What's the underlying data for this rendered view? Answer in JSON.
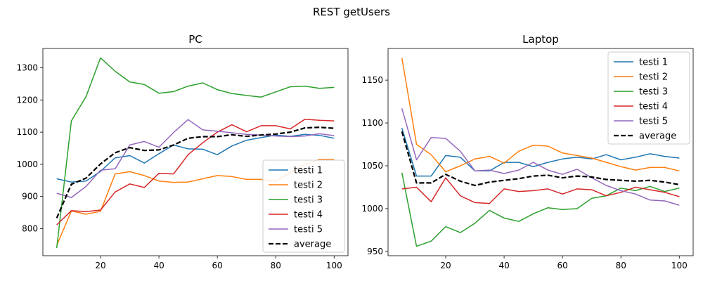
{
  "suptitle": "REST getUsers",
  "chart_data": [
    {
      "type": "line",
      "title": "PC",
      "xlabel": "",
      "ylabel": "",
      "xlim": [
        0.25,
        104.75
      ],
      "ylim": [
        716,
        1360
      ],
      "xticks": [
        20,
        40,
        60,
        80,
        100
      ],
      "yticks": [
        800,
        900,
        1000,
        1100,
        1200,
        1300
      ],
      "grid": false,
      "legend_position": "lower-right",
      "x": [
        5,
        10,
        15,
        20,
        25,
        30,
        35,
        40,
        45,
        50,
        55,
        60,
        65,
        70,
        75,
        80,
        85,
        90,
        95,
        100
      ],
      "series": [
        {
          "name": "testi 1",
          "color": "#1f77b4",
          "dashed": false,
          "values": [
            955,
            945,
            948,
            978,
            1020,
            1027,
            1004,
            1033,
            1060,
            1048,
            1047,
            1030,
            1057,
            1075,
            1083,
            1091,
            1087,
            1093,
            1090,
            1081
          ]
        },
        {
          "name": "testi 2",
          "color": "#ff7f0e",
          "dashed": false,
          "values": [
            748,
            855,
            845,
            854,
            970,
            977,
            965,
            948,
            944,
            945,
            955,
            965,
            962,
            953,
            953,
            948,
            975,
            1000,
            1015,
            1015
          ]
        },
        {
          "name": "testi 3",
          "color": "#2ca02c",
          "dashed": false,
          "values": [
            740,
            1135,
            1210,
            1331,
            1289,
            1256,
            1248,
            1221,
            1226,
            1243,
            1253,
            1232,
            1220,
            1214,
            1209,
            1225,
            1241,
            1243,
            1236,
            1239
          ]
        },
        {
          "name": "testi 4",
          "color": "#d62728",
          "dashed": false,
          "values": [
            812,
            856,
            853,
            858,
            914,
            939,
            928,
            972,
            970,
            1030,
            1067,
            1100,
            1123,
            1101,
            1120,
            1120,
            1110,
            1140,
            1137,
            1135
          ]
        },
        {
          "name": "testi 5",
          "color": "#9467bd",
          "dashed": false,
          "values": [
            910,
            897,
            931,
            982,
            986,
            1060,
            1071,
            1053,
            1099,
            1139,
            1107,
            1103,
            1098,
            1093,
            1091,
            1088,
            1086,
            1088,
            1095,
            1089
          ]
        },
        {
          "name": "average",
          "color": "#000000",
          "dashed": true,
          "values": [
            833,
            938,
            957,
            1001,
            1036,
            1052,
            1043,
            1045,
            1060,
            1081,
            1086,
            1086,
            1092,
            1087,
            1091,
            1094,
            1100,
            1113,
            1115,
            1112
          ]
        }
      ]
    },
    {
      "type": "line",
      "title": "Laptop",
      "xlabel": "",
      "ylabel": "",
      "xlim": [
        0.25,
        104.75
      ],
      "ylim": [
        945,
        1187
      ],
      "xticks": [
        20,
        40,
        60,
        80,
        100
      ],
      "yticks": [
        950,
        1000,
        1050,
        1100,
        1150
      ],
      "grid": false,
      "legend_position": "upper-right",
      "x": [
        5,
        10,
        15,
        20,
        25,
        30,
        35,
        40,
        45,
        50,
        55,
        60,
        65,
        70,
        75,
        80,
        85,
        90,
        95,
        100
      ],
      "series": [
        {
          "name": "testi 1",
          "color": "#1f77b4",
          "dashed": false,
          "values": [
            1094,
            1038,
            1038,
            1062,
            1060,
            1044,
            1044,
            1054,
            1054,
            1049,
            1054,
            1058,
            1060,
            1058,
            1063,
            1057,
            1060,
            1064,
            1061,
            1059
          ]
        },
        {
          "name": "testi 2",
          "color": "#ff7f0e",
          "dashed": false,
          "values": [
            1176,
            1075,
            1063,
            1043,
            1050,
            1058,
            1061,
            1053,
            1067,
            1074,
            1073,
            1065,
            1062,
            1059,
            1054,
            1049,
            1045,
            1048,
            1048,
            1044
          ]
        },
        {
          "name": "testi 3",
          "color": "#2ca02c",
          "dashed": false,
          "values": [
            1042,
            956,
            962,
            979,
            972,
            983,
            998,
            989,
            985,
            994,
            1001,
            999,
            1000,
            1012,
            1015,
            1024,
            1021,
            1026,
            1020,
            1024
          ]
        },
        {
          "name": "testi 4",
          "color": "#d62728",
          "dashed": false,
          "values": [
            1023,
            1025,
            1008,
            1036,
            1015,
            1007,
            1006,
            1023,
            1020,
            1021,
            1023,
            1017,
            1023,
            1022,
            1015,
            1019,
            1025,
            1022,
            1019,
            1014
          ]
        },
        {
          "name": "testi 5",
          "color": "#9467bd",
          "dashed": false,
          "values": [
            1117,
            1057,
            1083,
            1082,
            1067,
            1044,
            1045,
            1041,
            1045,
            1054,
            1045,
            1040,
            1046,
            1036,
            1027,
            1021,
            1017,
            1010,
            1009,
            1004
          ]
        },
        {
          "name": "average",
          "color": "#000000",
          "dashed": true,
          "values": [
            1090,
            1030,
            1030,
            1040,
            1032,
            1027,
            1031,
            1033,
            1035,
            1038,
            1039,
            1036,
            1038,
            1037,
            1034,
            1033,
            1032,
            1033,
            1031,
            1028
          ]
        }
      ]
    }
  ]
}
